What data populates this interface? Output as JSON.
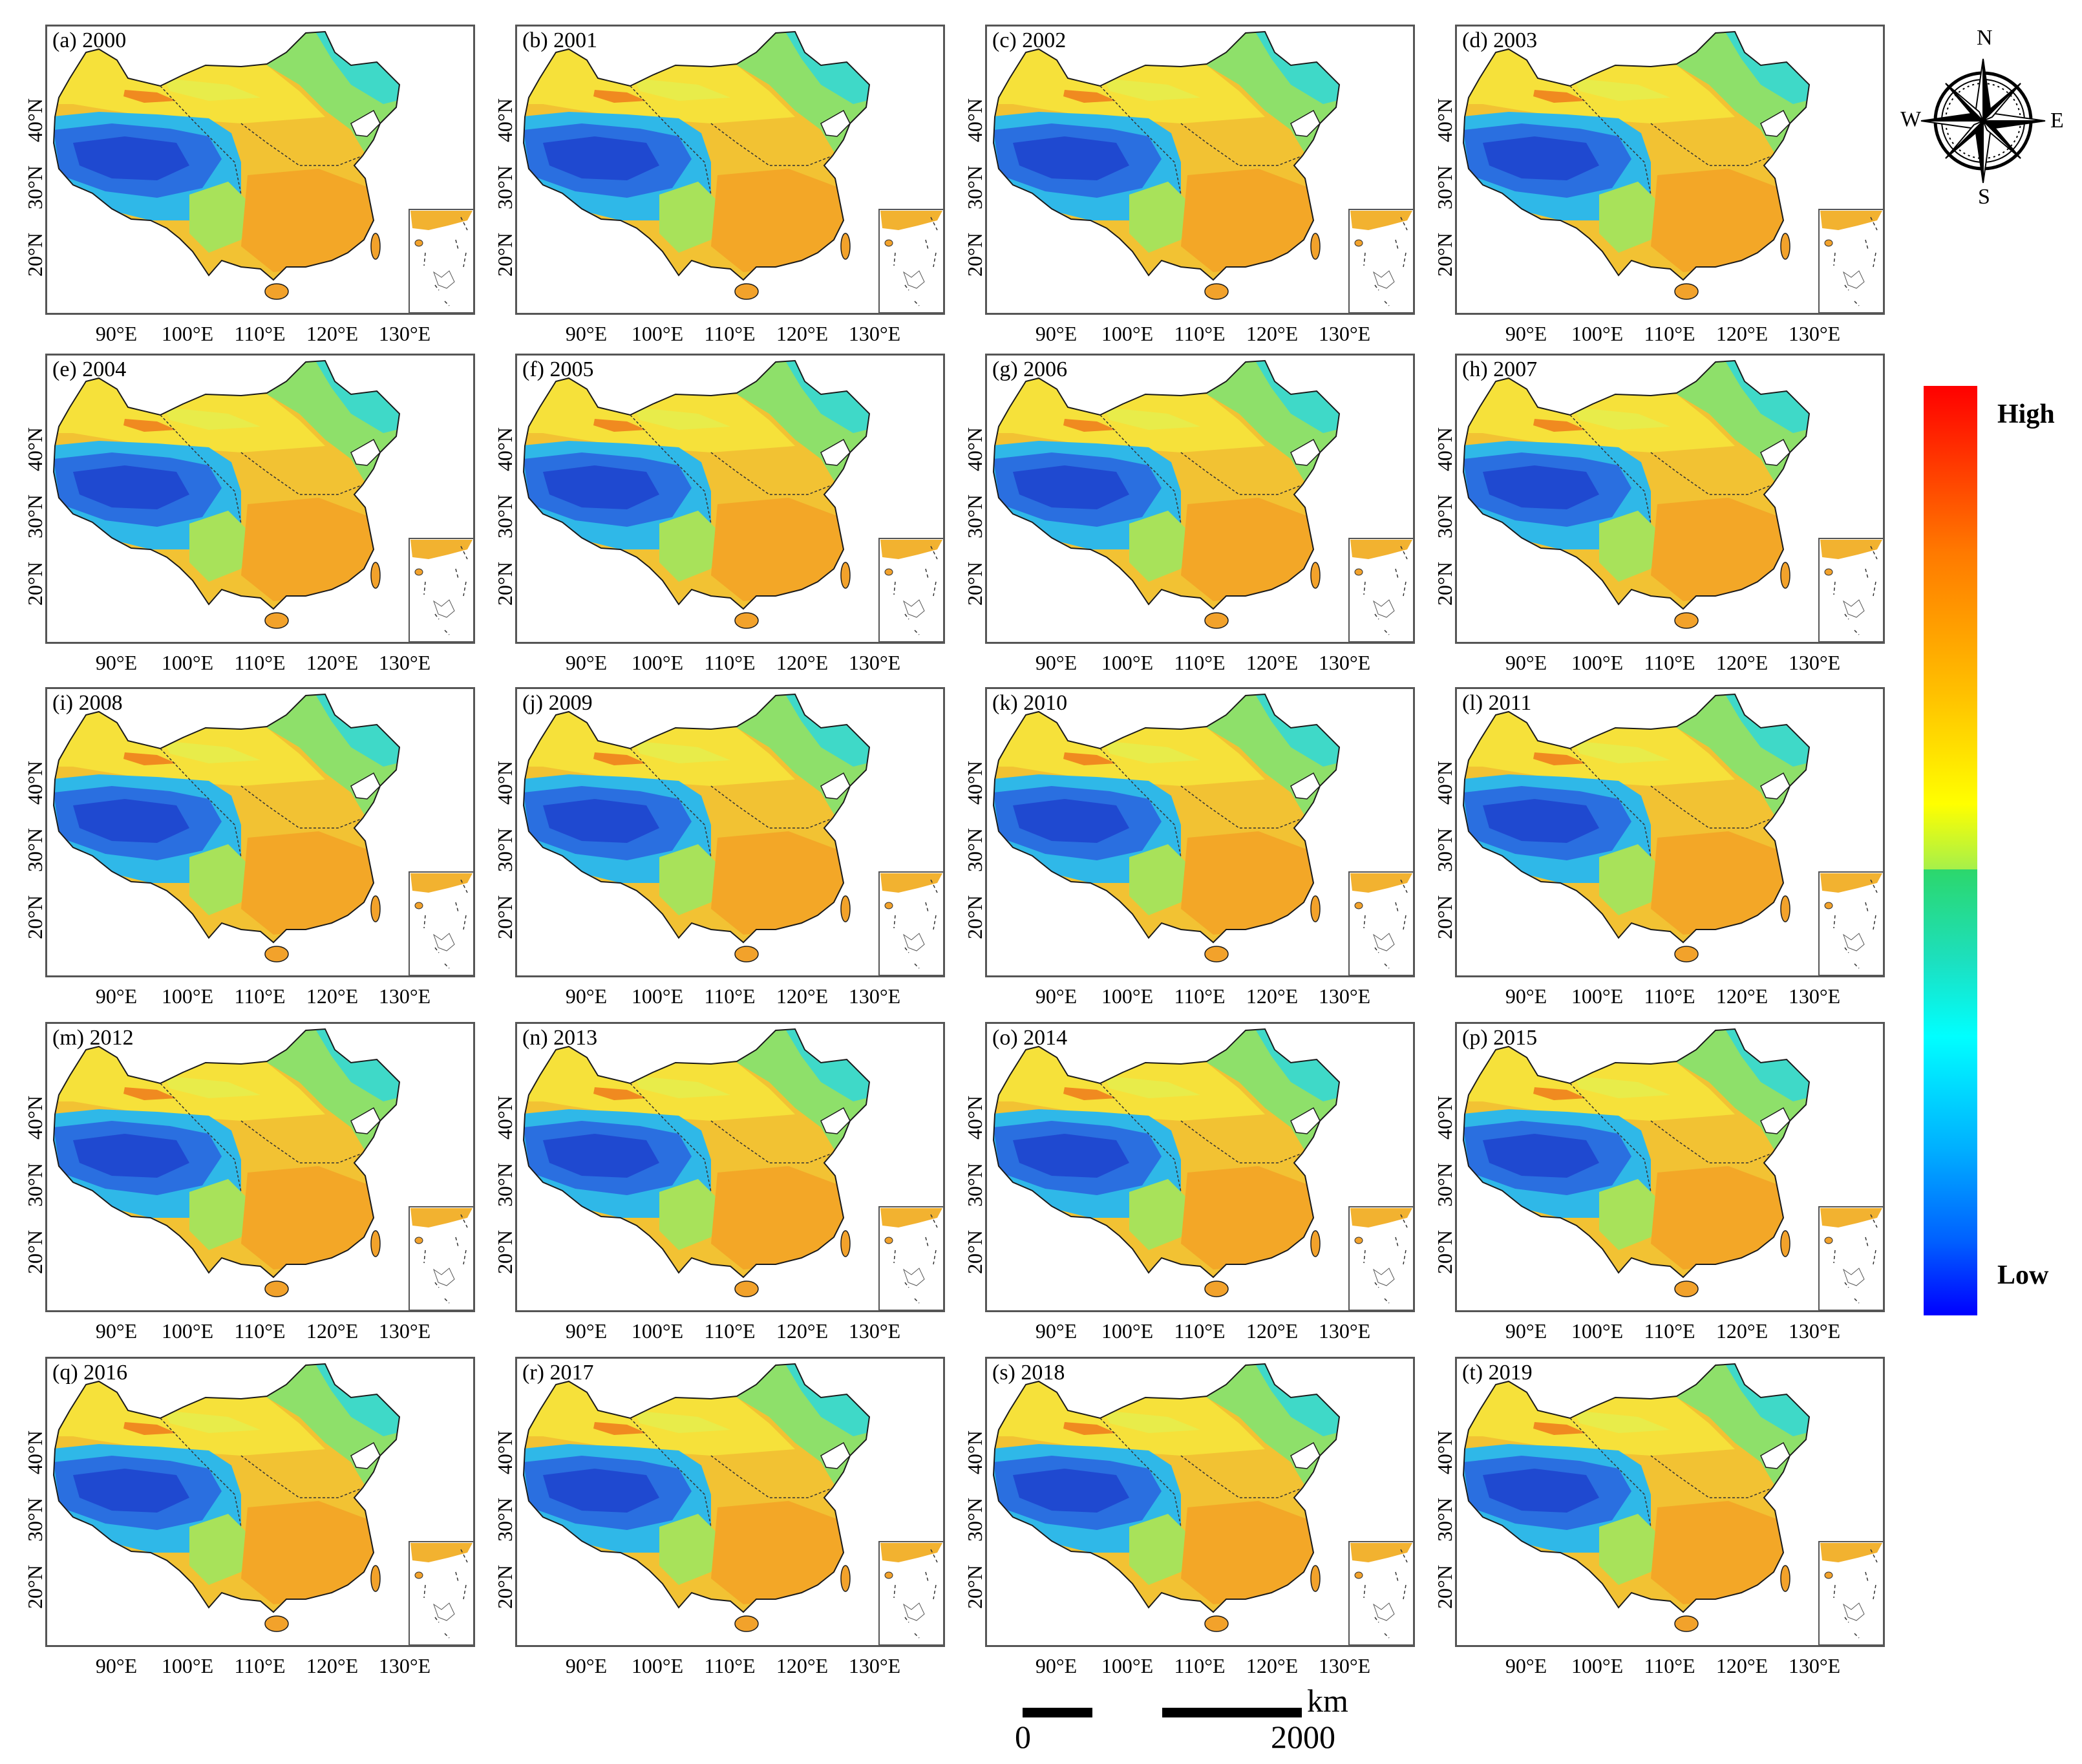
{
  "figure": {
    "panels": [
      {
        "label": "(a) 2000"
      },
      {
        "label": "(b) 2001"
      },
      {
        "label": "(c) 2002"
      },
      {
        "label": "(d) 2003"
      },
      {
        "label": "(e) 2004"
      },
      {
        "label": "(f) 2005"
      },
      {
        "label": "(g) 2006"
      },
      {
        "label": "(h) 2007"
      },
      {
        "label": "(i) 2008"
      },
      {
        "label": "(j) 2009"
      },
      {
        "label": "(k) 2010"
      },
      {
        "label": "(l) 2011"
      },
      {
        "label": "(m) 2012"
      },
      {
        "label": "(n) 2013"
      },
      {
        "label": "(o) 2014"
      },
      {
        "label": "(p) 2015"
      },
      {
        "label": "(q) 2016"
      },
      {
        "label": "(r) 2017"
      },
      {
        "label": "(s) 2018"
      },
      {
        "label": "(t) 2019"
      }
    ],
    "lat_ticks": [
      "40°N",
      "30°N",
      "20°N"
    ],
    "lon_ticks": [
      "90°E",
      "100°E",
      "110°E",
      "120°E",
      "130°E"
    ]
  },
  "legend": {
    "high_label": "High",
    "low_label": "Low",
    "colors": [
      "#ff0000",
      "#ff7a00",
      "#ffc000",
      "#ffff00",
      "#a6f04a",
      "#2cd76c",
      "#1ce0c0",
      "#00ffff",
      "#00b0ff",
      "#0060ff",
      "#0000ff"
    ]
  },
  "compass": {
    "n": "N",
    "s": "S",
    "e": "E",
    "w": "W"
  },
  "scale_bar": {
    "unit": "km",
    "start": "0",
    "end": "2000"
  }
}
